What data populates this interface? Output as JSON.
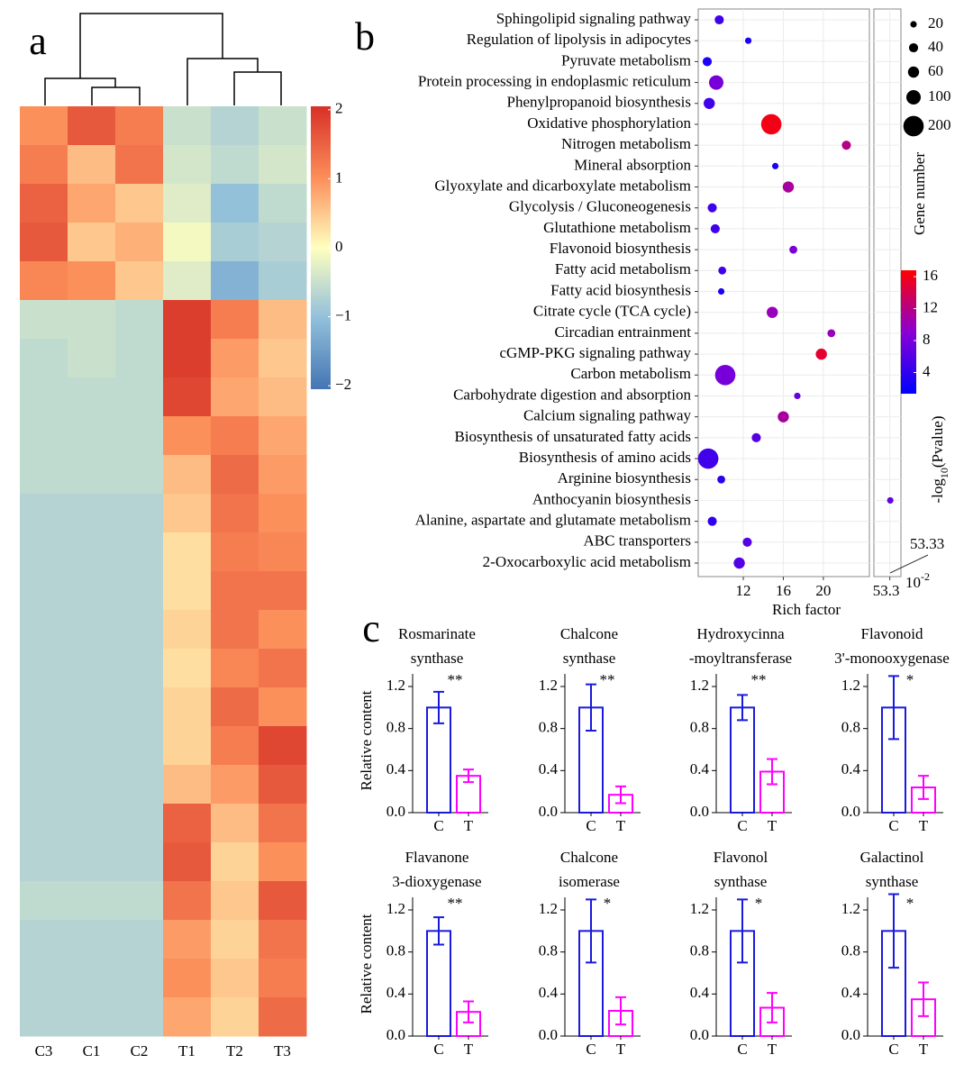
{
  "chart_data": [
    {
      "type": "heatmap",
      "panel_label": "a",
      "categories": [
        "C3",
        "C1",
        "C2",
        "T1",
        "T2",
        "T3"
      ],
      "matrix": [
        [
          1.0,
          1.6,
          1.2,
          -0.5,
          -0.7,
          -0.5
        ],
        [
          1.2,
          0.6,
          1.3,
          -0.4,
          -0.6,
          -0.4
        ],
        [
          1.5,
          0.8,
          0.5,
          -0.3,
          -1.0,
          -0.6
        ],
        [
          1.6,
          0.5,
          0.7,
          -0.1,
          -0.8,
          -0.7
        ],
        [
          1.1,
          1.0,
          0.5,
          -0.3,
          -1.2,
          -0.8
        ],
        [
          -0.5,
          -0.5,
          -0.6,
          1.9,
          1.2,
          0.6
        ],
        [
          -0.6,
          -0.5,
          -0.6,
          1.9,
          0.9,
          0.5
        ],
        [
          -0.6,
          -0.6,
          -0.6,
          1.8,
          0.8,
          0.6
        ],
        [
          -0.6,
          -0.6,
          -0.6,
          1.0,
          1.2,
          0.8
        ],
        [
          -0.6,
          -0.6,
          -0.6,
          0.6,
          1.4,
          0.9
        ],
        [
          -0.7,
          -0.7,
          -0.7,
          0.5,
          1.3,
          1.0
        ],
        [
          -0.7,
          -0.7,
          -0.7,
          0.3,
          1.2,
          1.1
        ],
        [
          -0.7,
          -0.7,
          -0.7,
          0.3,
          1.3,
          1.3
        ],
        [
          -0.7,
          -0.7,
          -0.7,
          0.4,
          1.3,
          1.0
        ],
        [
          -0.7,
          -0.7,
          -0.7,
          0.3,
          1.1,
          1.3
        ],
        [
          -0.7,
          -0.7,
          -0.7,
          0.4,
          1.4,
          1.0
        ],
        [
          -0.7,
          -0.7,
          -0.7,
          0.4,
          1.2,
          1.8
        ],
        [
          -0.7,
          -0.7,
          -0.7,
          0.6,
          0.9,
          1.6
        ],
        [
          -0.7,
          -0.7,
          -0.7,
          1.5,
          0.6,
          1.3
        ],
        [
          -0.7,
          -0.7,
          -0.7,
          1.6,
          0.4,
          1.0
        ],
        [
          -0.6,
          -0.6,
          -0.6,
          1.3,
          0.5,
          1.6
        ],
        [
          -0.7,
          -0.7,
          -0.7,
          0.9,
          0.4,
          1.3
        ],
        [
          -0.7,
          -0.7,
          -0.7,
          1.0,
          0.5,
          1.2
        ],
        [
          -0.7,
          -0.7,
          -0.7,
          0.8,
          0.4,
          1.4
        ]
      ],
      "colormap": [
        "#4575b4",
        "#91bfdb",
        "#ffffbf",
        "#fc8d59",
        "#d73027"
      ],
      "clim": [
        -2.05,
        2.05
      ],
      "cticks": [
        2,
        1,
        0,
        {
          "value": -1,
          "label": "−1"
        },
        {
          "value": -2,
          "label": "−2"
        }
      ]
    },
    {
      "type": "scatter",
      "panel_label": "b",
      "categories": [
        "Sphingolipid signaling pathway",
        "Regulation of lipolysis in adipocytes",
        "Pyruvate metabolism",
        "Protein processing in endoplasmic reticulum",
        "Phenylpropanoid biosynthesis",
        "Oxidative phosphorylation",
        "Nitrogen metabolism",
        "Mineral absorption",
        "Glyoxylate and dicarboxylate metabolism",
        "Glycolysis / Gluconeogenesis",
        "Glutathione metabolism",
        "Flavonoid biosynthesis",
        "Fatty acid metabolism",
        "Fatty acid biosynthesis",
        "Citrate cycle (TCA cycle)",
        "Circadian entrainment",
        "cGMP-PKG signaling pathway",
        "Carbon metabolism",
        "Carbohydrate digestion and absorption",
        "Calcium signaling pathway",
        "Biosynthesis of unsaturated fatty acids",
        "Biosynthesis of amino acids",
        "Arginine biosynthesis",
        "Anthocyanin biosynthesis",
        "Alanine, aspartate and glutamate metabolism",
        "ABC transporters",
        "2-Oxocarboxylic acid metabolism"
      ],
      "label_colors": [
        "#ff0000",
        "#ff0000",
        "#ff0000",
        "#ff0000",
        "#000000",
        "#ff0000",
        "#000000",
        "#000000",
        "#ff0000",
        "#ff0000",
        "#000000",
        "#1f78b4",
        "#000000",
        "#000000",
        "#ff0000",
        "#ff0000",
        "#ff0000",
        "#ff0000",
        "#ff0000",
        "#ff0000",
        "#000000",
        "#ff0000",
        "#ff0000",
        "#1f78b4",
        "#ff0000",
        "#000000",
        "#ff0000"
      ],
      "x": [
        9.6,
        12.5,
        8.4,
        9.3,
        8.6,
        14.8,
        22.3,
        15.2,
        16.5,
        8.9,
        9.2,
        17.0,
        9.9,
        9.8,
        14.9,
        20.8,
        19.8,
        10.2,
        17.4,
        16.0,
        13.3,
        8.5,
        9.8,
        53.33,
        8.9,
        12.4,
        11.6
      ],
      "sizes": [
        40,
        20,
        40,
        100,
        60,
        200,
        40,
        20,
        60,
        40,
        40,
        30,
        30,
        20,
        60,
        30,
        60,
        200,
        20,
        60,
        40,
        200,
        30,
        20,
        40,
        40,
        60
      ],
      "scores": [
        5,
        3,
        3,
        8,
        5,
        16,
        12,
        3,
        11,
        5,
        5,
        8,
        5,
        3,
        10,
        10,
        15,
        8,
        7,
        11,
        6,
        5,
        4,
        7,
        4,
        6,
        6
      ],
      "xlim": [
        7.5,
        24.6
      ],
      "xticks": [
        12,
        16,
        20
      ],
      "x2lim": [
        52.3,
        54.0
      ],
      "x2ticks": [
        53.3
      ],
      "xlabel": "Rich factor",
      "size_title": "Gene number",
      "size_legend": [
        20,
        40,
        60,
        100,
        200
      ],
      "colormap": [
        "#0000ff",
        "#8a00d4",
        "#ff0000"
      ],
      "clim": [
        1.35,
        16.8
      ],
      "cticks": [
        16,
        12,
        8,
        4
      ],
      "color_title": [
        "-log",
        "10",
        "(Pvalue)"
      ],
      "annotation": "53.33",
      "annotation_unit": [
        "10",
        "-2"
      ],
      "grid": true
    },
    {
      "type": "bar",
      "panel_label": "c",
      "title": [
        "Rosmarinate",
        "synthase"
      ],
      "categories": [
        "C",
        "T"
      ],
      "values": [
        1,
        0.35
      ],
      "errors": [
        0.15,
        0.06
      ],
      "colors": [
        "#1a1adc",
        "#ff00ff"
      ],
      "significance": "**",
      "ylim": [
        0,
        1.32
      ],
      "yticks": [
        {
          "value": 0,
          "label": "0.0"
        },
        0.4,
        0.8,
        1.2
      ],
      "ylabel": "Relative content"
    },
    {
      "type": "bar",
      "title": [
        "Chalcone",
        "synthase"
      ],
      "categories": [
        "C",
        "T"
      ],
      "values": [
        1,
        0.17
      ],
      "errors": [
        0.22,
        0.08
      ],
      "colors": [
        "#1a1adc",
        "#ff00ff"
      ],
      "significance": "**",
      "ylim": [
        0,
        1.32
      ],
      "yticks": [
        {
          "value": 0,
          "label": "0.0"
        },
        0.4,
        0.8,
        1.2
      ]
    },
    {
      "type": "bar",
      "title": [
        "Hydroxycinna",
        "-moyltransferase"
      ],
      "categories": [
        "C",
        "T"
      ],
      "values": [
        1,
        0.39
      ],
      "errors": [
        0.12,
        0.12
      ],
      "colors": [
        "#1a1adc",
        "#ff00ff"
      ],
      "significance": "**",
      "ylim": [
        0,
        1.32
      ],
      "yticks": [
        {
          "value": 0,
          "label": "0.0"
        },
        0.4,
        0.8,
        1.2
      ]
    },
    {
      "type": "bar",
      "title": [
        "Flavonoid",
        "3'-monooxygenase"
      ],
      "categories": [
        "C",
        "T"
      ],
      "values": [
        1,
        0.24
      ],
      "errors": [
        0.3,
        0.11
      ],
      "colors": [
        "#1a1adc",
        "#ff00ff"
      ],
      "significance": "*",
      "ylim": [
        0,
        1.32
      ],
      "yticks": [
        {
          "value": 0,
          "label": "0.0"
        },
        0.4,
        0.8,
        1.2
      ]
    },
    {
      "type": "bar",
      "title": [
        "Flavanone",
        "3-dioxygenase"
      ],
      "categories": [
        "C",
        "T"
      ],
      "values": [
        1,
        0.23
      ],
      "errors": [
        0.13,
        0.1
      ],
      "colors": [
        "#1a1adc",
        "#ff00ff"
      ],
      "significance": "**",
      "ylim": [
        0,
        1.32
      ],
      "yticks": [
        {
          "value": 0,
          "label": "0.0"
        },
        0.4,
        0.8,
        1.2
      ],
      "ylabel": "Relative content"
    },
    {
      "type": "bar",
      "title": [
        "Chalcone",
        "isomerase"
      ],
      "categories": [
        "C",
        "T"
      ],
      "values": [
        1,
        0.24
      ],
      "errors": [
        0.3,
        0.13
      ],
      "colors": [
        "#1a1adc",
        "#ff00ff"
      ],
      "significance": "*",
      "ylim": [
        0,
        1.32
      ],
      "yticks": [
        {
          "value": 0,
          "label": "0.0"
        },
        0.4,
        0.8,
        1.2
      ]
    },
    {
      "type": "bar",
      "title": [
        "Flavonol",
        "synthase"
      ],
      "categories": [
        "C",
        "T"
      ],
      "values": [
        1,
        0.27
      ],
      "errors": [
        0.3,
        0.14
      ],
      "colors": [
        "#1a1adc",
        "#ff00ff"
      ],
      "significance": "*",
      "ylim": [
        0,
        1.32
      ],
      "yticks": [
        {
          "value": 0,
          "label": "0.0"
        },
        0.4,
        0.8,
        1.2
      ]
    },
    {
      "type": "bar",
      "title": [
        "Galactinol",
        "synthase"
      ],
      "categories": [
        "C",
        "T"
      ],
      "values": [
        1,
        0.35
      ],
      "errors": [
        0.35,
        0.16
      ],
      "colors": [
        "#1a1adc",
        "#ff00ff"
      ],
      "significance": "*",
      "ylim": [
        0,
        1.32
      ],
      "yticks": [
        {
          "value": 0,
          "label": "0.0"
        },
        0.4,
        0.8,
        1.2
      ]
    }
  ]
}
